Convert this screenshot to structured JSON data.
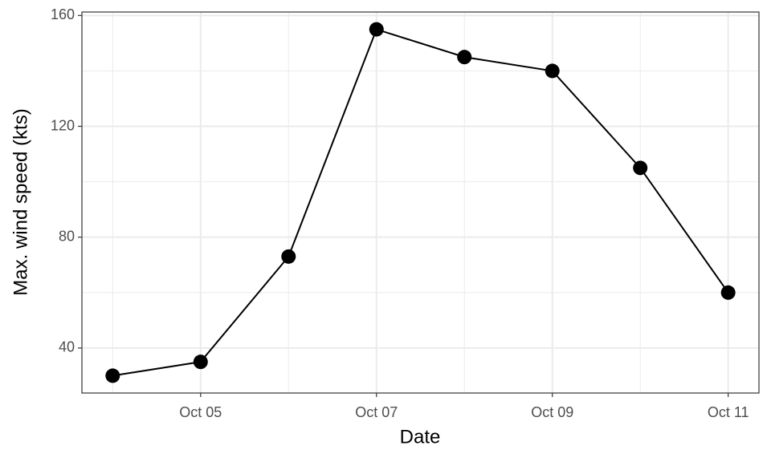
{
  "chart_data": {
    "type": "line",
    "x_label": "Date",
    "y_label": "Max. wind speed (kts)",
    "x": [
      4,
      5,
      6,
      7,
      8,
      9,
      10,
      11
    ],
    "series": [
      {
        "color": "#000000",
        "values": [
          30,
          35,
          73,
          155,
          145,
          140,
          105,
          60
        ]
      }
    ],
    "xlim": [
      3.65,
      11.35
    ],
    "xticks": [
      {
        "value": 5,
        "label": "Oct 05"
      },
      {
        "value": 7,
        "label": "Oct 07"
      },
      {
        "value": 9,
        "label": "Oct 09"
      },
      {
        "value": 11,
        "label": "Oct 11"
      }
    ],
    "xminor": [
      4,
      6,
      8,
      10
    ],
    "ylim": [
      23.75,
      161.25
    ],
    "yticks": [
      40,
      80,
      120,
      160
    ],
    "yminor": [
      60,
      100,
      140
    ],
    "grid": true
  }
}
